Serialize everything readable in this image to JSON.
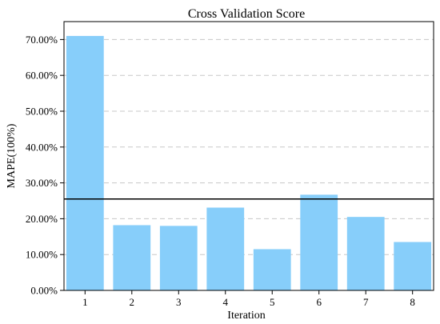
{
  "chart_data": {
    "type": "bar",
    "title": "Cross Validation Score",
    "xlabel": "Iteration",
    "ylabel": "MAPE(100%)",
    "categories": [
      "1",
      "2",
      "3",
      "4",
      "5",
      "6",
      "7",
      "8"
    ],
    "values": [
      0.71,
      0.182,
      0.18,
      0.231,
      0.115,
      0.267,
      0.205,
      0.135
    ],
    "reference_line": 0.255,
    "ylim": [
      0,
      0.75
    ],
    "yticks": [
      0,
      0.1,
      0.2,
      0.3,
      0.4,
      0.5,
      0.6,
      0.7
    ],
    "ytick_labels": [
      "0.00%",
      "10.00%",
      "20.00%",
      "30.00%",
      "40.00%",
      "50.00%",
      "60.00%",
      "70.00%"
    ],
    "bar_color": "#87CEFA",
    "grid": "y-dashed",
    "legend": "none"
  }
}
